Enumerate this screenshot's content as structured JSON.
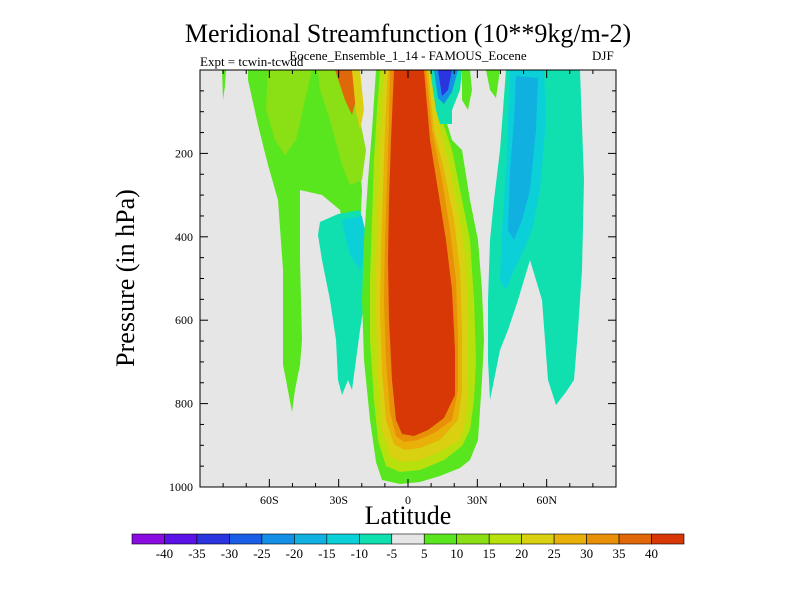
{
  "chart_data": {
    "type": "contour",
    "title": "Meridional Streamfunction (10**9kg/m-2)",
    "subtitle": "Eocene_Ensemble_1_14 - FAMOUS_Eocene",
    "expt_label": "Expt = tcwin-tcwdd",
    "season_label": "DJF",
    "xlabel": "Latitude",
    "ylabel": "Pressure (in hPa)",
    "xlim": [
      -90,
      90
    ],
    "ylim": [
      1000,
      0
    ],
    "x_ticks": [
      {
        "value": -60,
        "label": "60S"
      },
      {
        "value": -30,
        "label": "30S"
      },
      {
        "value": 0,
        "label": "0"
      },
      {
        "value": 30,
        "label": "30N"
      },
      {
        "value": 60,
        "label": "60N"
      }
    ],
    "y_ticks": [
      {
        "value": 200,
        "label": "200"
      },
      {
        "value": 400,
        "label": "400"
      },
      {
        "value": 600,
        "label": "600"
      },
      {
        "value": 800,
        "label": "800"
      },
      {
        "value": 1000,
        "label": "1000"
      }
    ],
    "background_color": "#e6e6e6",
    "colorbar": {
      "labels": [
        "-40",
        "-35",
        "-30",
        "-25",
        "-20",
        "-15",
        "-10",
        "-5",
        "5",
        "10",
        "15",
        "20",
        "25",
        "30",
        "35",
        "40"
      ],
      "colors": [
        "#8a0ce0",
        "#5a12e8",
        "#2a35e0",
        "#1a5ee8",
        "#1490e6",
        "#10b0e0",
        "#0cd0d8",
        "#10e0b0",
        "#e6e6e6",
        "#5ae61e",
        "#8ae014",
        "#b8e00c",
        "#d8d010",
        "#e8b008",
        "#e89008",
        "#e06808",
        "#d83806"
      ]
    },
    "regions": [
      {
        "name": "central-positive-cell",
        "level": 40,
        "description": "strong positive cell spanning about 15S to 15N from the top of the model down to about 1000 hPa"
      },
      {
        "name": "northern-negative-cell",
        "level": -10,
        "description": "negative streamfunction from about 30N to 65N between the top and 800 hPa"
      },
      {
        "name": "southern-negative-cell",
        "level": -10,
        "description": "negative streamfunction around 45S to 25S between 360 hPa and 790 hPa"
      },
      {
        "name": "southern-positive-band",
        "level": 10,
        "description": "weak positive band from about 70S to 15S near the top, extending down to about 820 hPa near 60S"
      },
      {
        "name": "upper-northern-negative-core",
        "level": -35,
        "description": "small strong negative core near 15N at the top"
      }
    ]
  }
}
